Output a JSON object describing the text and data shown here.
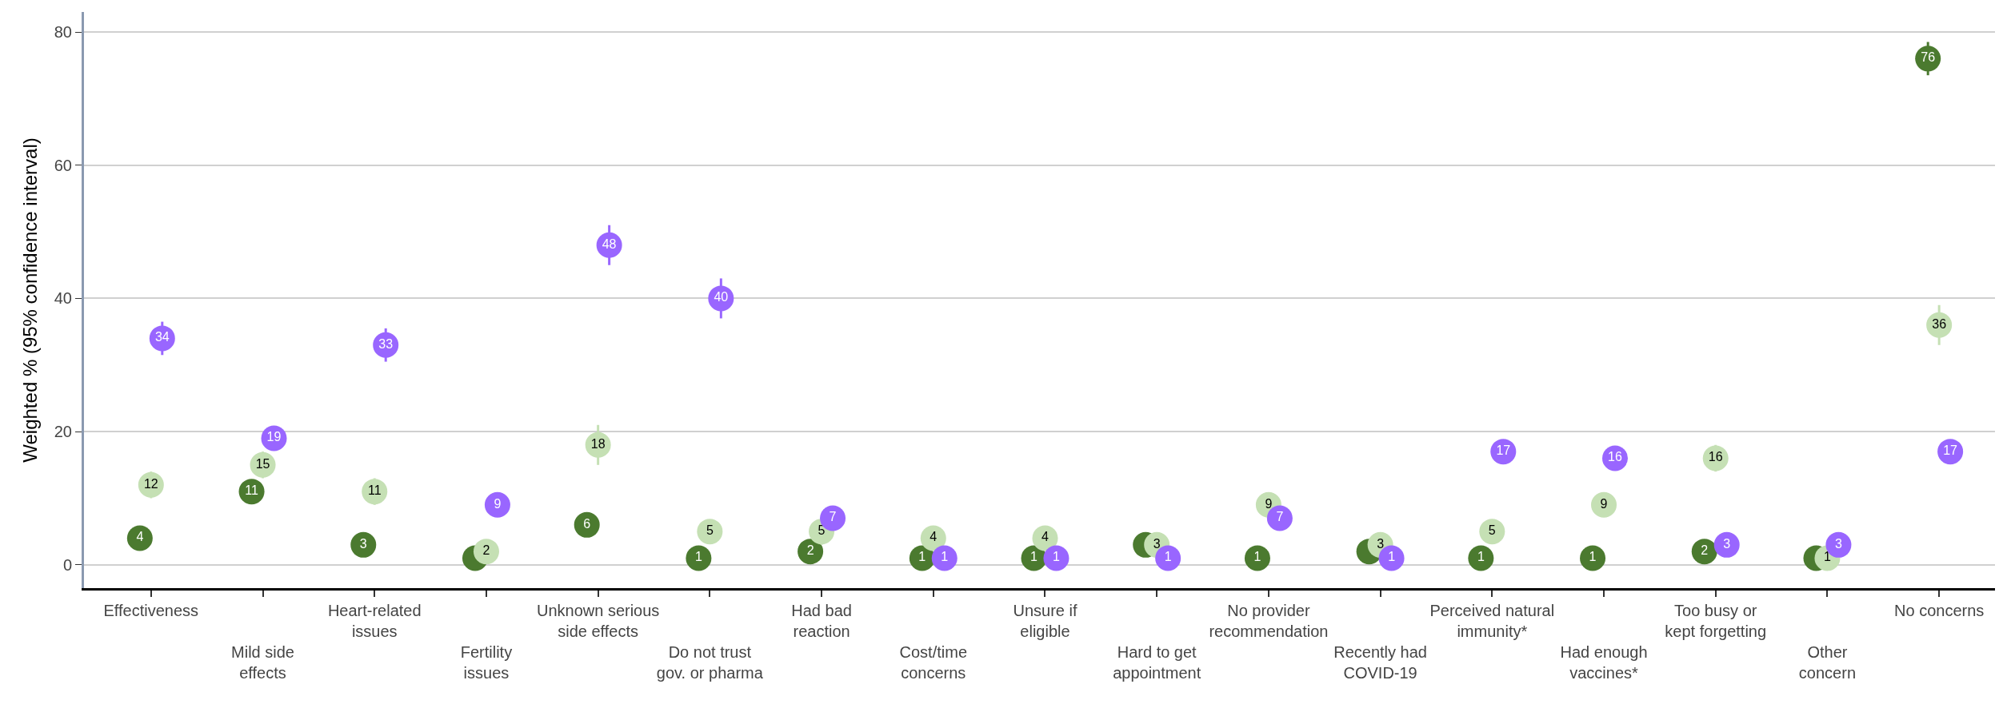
{
  "chart_data": {
    "type": "scatter",
    "ylabel": "Weighted % (95% confidence interval)",
    "categories": [
      "Effectiveness",
      "Mild side\neffects",
      "Heart-related\nissues",
      "Fertility\nissues",
      "Unknown serious\nside effects",
      "Do not trust\ngov. or pharma",
      "Had bad\nreaction",
      "Cost/time\nconcerns",
      "Unsure if\neligible",
      "Hard to get\nappointment",
      "No provider\nrecommendation",
      "Recently had\nCOVID-19",
      "Perceived natural\nimmunity*",
      "Had enough\nvaccines*",
      "Too busy or\nkept forgetting",
      "Other\nconcern",
      "No concerns"
    ],
    "series": [
      {
        "color": "#4b7a2f",
        "values": [
          4,
          11,
          3,
          1,
          6,
          1,
          2,
          1,
          1,
          3,
          1,
          2,
          1,
          1,
          2,
          1,
          76
        ],
        "value_labels": [
          "4",
          "11",
          "3",
          null,
          "6",
          "1",
          "2",
          "1",
          "1",
          null,
          "1",
          null,
          "1",
          "1",
          "2",
          null,
          "76"
        ],
        "errors": [
          1,
          1.5,
          1,
          null,
          1,
          null,
          null,
          null,
          null,
          null,
          null,
          null,
          null,
          null,
          null,
          null,
          2.5
        ]
      },
      {
        "color": "#c5e0b4",
        "values": [
          12,
          15,
          11,
          2,
          18,
          5,
          5,
          4,
          4,
          3,
          9,
          3,
          5,
          9,
          16,
          1,
          36
        ],
        "errors": [
          2,
          2,
          2,
          1.5,
          3,
          1,
          2,
          1,
          1,
          1,
          1.5,
          1,
          1,
          1.5,
          2,
          null,
          3
        ]
      },
      {
        "color": "#9966ff",
        "values": [
          34,
          19,
          33,
          9,
          48,
          40,
          7,
          1,
          1,
          1,
          7,
          1,
          17,
          16,
          3,
          3,
          17
        ],
        "errors": [
          2.5,
          null,
          2.5,
          null,
          3,
          3,
          null,
          null,
          null,
          null,
          null,
          null,
          1,
          null,
          null,
          null,
          null
        ]
      }
    ],
    "ylim": [
      -3.5,
      83
    ],
    "yticks": [
      0,
      20,
      40,
      60,
      80
    ],
    "grid": "y",
    "marker": "circle",
    "data_labels": true
  }
}
